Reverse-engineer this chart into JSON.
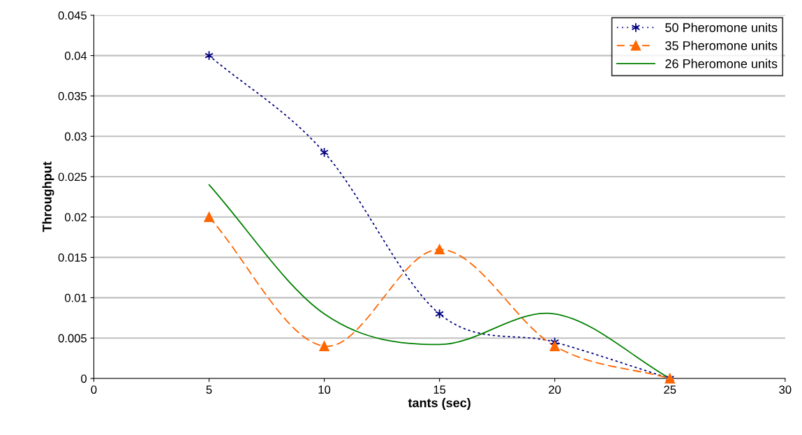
{
  "chart_data": {
    "type": "line",
    "xlabel": "tants (sec)",
    "ylabel": "Throughput",
    "x": [
      5,
      10,
      15,
      20,
      25
    ],
    "series": [
      {
        "name": "50 Pheromone units",
        "color": "#000080",
        "values": [
          0.04,
          0.028,
          0.008,
          0.0045,
          0
        ],
        "marker": "cross",
        "line_style": "dotted"
      },
      {
        "name": "35 Pheromone units",
        "color": "#ff6600",
        "values": [
          0.02,
          0.004,
          0.016,
          0.004,
          0
        ],
        "marker": "triangle",
        "line_style": "dashed"
      },
      {
        "name": "26 Pheromone units",
        "color": "#008000",
        "values": [
          0.024,
          0.008,
          0.0042,
          0.008,
          0
        ],
        "marker": "none",
        "line_style": "solid"
      }
    ],
    "xlim": [
      0,
      30
    ],
    "xticks": [
      0,
      5,
      10,
      15,
      20,
      25,
      30
    ],
    "ylim": [
      0,
      0.045
    ],
    "yticks": [
      0,
      0.005,
      0.01,
      0.015,
      0.02,
      0.025,
      0.03,
      0.035,
      0.04,
      0.045
    ],
    "grid": "y",
    "legend": "top right"
  }
}
